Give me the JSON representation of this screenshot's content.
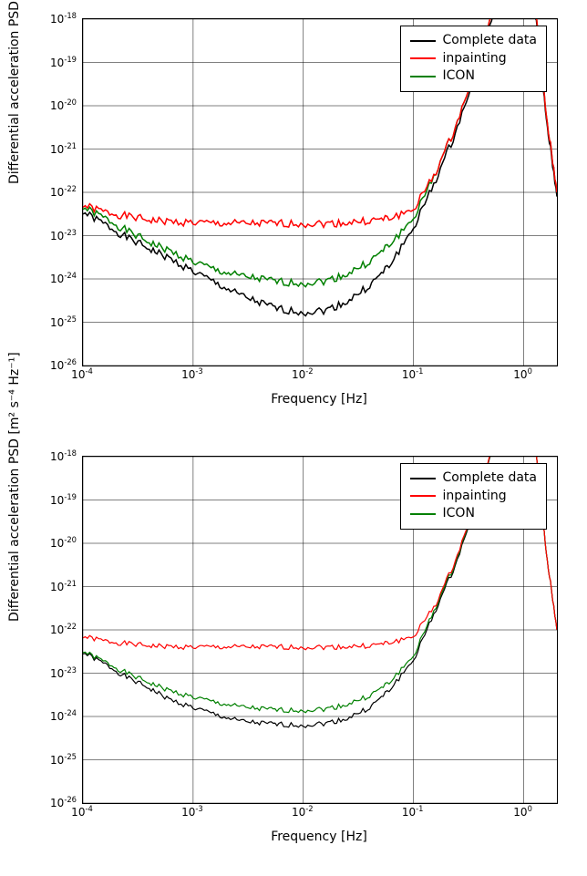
{
  "charts": [
    {
      "id": "top",
      "type": "line",
      "xlabel": "Frequency [Hz]",
      "ylabel": "Differential acceleration PSD [m² s⁻⁴ Hz⁻¹]",
      "label_fontsize": 14,
      "tick_fontsize": 12,
      "background_color": "#ffffff",
      "grid_color": "#000000",
      "border_color": "#000000",
      "xscale": "log",
      "yscale": "log",
      "xlim": [
        0.0001,
        2.0
      ],
      "ylim": [
        1e-26,
        1e-18
      ],
      "xticks": [
        0.0001,
        0.001,
        0.01,
        0.1,
        1.0
      ],
      "yticks": [
        1e-26,
        1e-25,
        1e-24,
        1e-23,
        1e-22,
        1e-21,
        1e-20,
        1e-19,
        1e-18
      ],
      "legend": {
        "position": "upper-right",
        "items": [
          {
            "label": "Complete data",
            "color": "#000000"
          },
          {
            "label": "inpainting",
            "color": "#ff0000"
          },
          {
            "label": "ICON",
            "color": "#008000"
          }
        ]
      },
      "series": [
        {
          "name": "Complete data",
          "color": "#000000",
          "line_width": 1.5,
          "noise_amp": 0.18,
          "x": [
            0.0001,
            0.00016,
            0.00025,
            0.0004,
            0.0006,
            0.001,
            0.0016,
            0.0025,
            0.004,
            0.006,
            0.01,
            0.016,
            0.025,
            0.04,
            0.06,
            0.1,
            0.16,
            0.25,
            0.4,
            0.6,
            1.0,
            1.3,
            1.6,
            2.0
          ],
          "y": [
            3.5e-23,
            1.8e-23,
            9e-24,
            5e-24,
            3e-24,
            1.5e-24,
            8e-25,
            4.5e-25,
            2.8e-25,
            2e-25,
            1.7e-25,
            1.9e-25,
            3e-25,
            7e-25,
            2e-24,
            1.5e-23,
            2e-22,
            3e-21,
            1.5e-19,
            3e-18,
            1e-16,
            8e-19,
            5e-21,
            8e-23
          ]
        },
        {
          "name": "ICON",
          "color": "#008000",
          "line_width": 1.5,
          "noise_amp": 0.18,
          "x": [
            0.0001,
            0.00016,
            0.00025,
            0.0004,
            0.0006,
            0.001,
            0.0016,
            0.0025,
            0.004,
            0.006,
            0.01,
            0.016,
            0.025,
            0.04,
            0.06,
            0.1,
            0.16,
            0.25,
            0.4,
            0.6,
            1.0,
            1.3,
            1.6,
            2.0
          ],
          "y": [
            4.5e-23,
            2.5e-23,
            1.3e-23,
            7e-24,
            4.5e-24,
            2.5e-24,
            1.6e-24,
            1.2e-24,
            1e-24,
            8.5e-25,
            8e-25,
            9e-25,
            1.3e-24,
            2.5e-24,
            6e-24,
            2.5e-23,
            3e-22,
            4e-21,
            2e-19,
            4e-18,
            1e-16,
            1e-18,
            6e-21,
            1e-22
          ]
        },
        {
          "name": "inpainting",
          "color": "#ff0000",
          "line_width": 1.5,
          "noise_amp": 0.18,
          "x": [
            0.0001,
            0.00016,
            0.00025,
            0.0004,
            0.0006,
            0.001,
            0.0016,
            0.0025,
            0.004,
            0.006,
            0.01,
            0.016,
            0.025,
            0.04,
            0.06,
            0.1,
            0.16,
            0.25,
            0.4,
            0.6,
            1.0,
            1.3,
            1.6,
            2.0
          ],
          "y": [
            5e-23,
            3.5e-23,
            2.8e-23,
            2.3e-23,
            2.1e-23,
            2e-23,
            1.9e-23,
            1.9e-23,
            1.9e-23,
            1.9e-23,
            1.9e-23,
            1.9e-23,
            2e-23,
            2.2e-23,
            2.5e-23,
            4e-23,
            3e-22,
            4e-21,
            2e-19,
            4e-18,
            1e-16,
            1e-18,
            6e-21,
            1e-22
          ]
        }
      ]
    },
    {
      "id": "bottom",
      "type": "line",
      "xlabel": "Frequency [Hz]",
      "ylabel": "Differential acceleration PSD [m² s⁻⁴ Hz⁻¹]",
      "label_fontsize": 14,
      "tick_fontsize": 12,
      "background_color": "#ffffff",
      "grid_color": "#000000",
      "border_color": "#000000",
      "xscale": "log",
      "yscale": "log",
      "xlim": [
        0.0001,
        2.0
      ],
      "ylim": [
        1e-26,
        1e-18
      ],
      "xticks": [
        0.0001,
        0.001,
        0.01,
        0.1,
        1.0
      ],
      "yticks": [
        1e-26,
        1e-25,
        1e-24,
        1e-23,
        1e-22,
        1e-21,
        1e-20,
        1e-19,
        1e-18
      ],
      "legend": {
        "position": "upper-right",
        "items": [
          {
            "label": "Complete data",
            "color": "#000000"
          },
          {
            "label": "inpainting",
            "color": "#ff0000"
          },
          {
            "label": "ICON",
            "color": "#008000"
          }
        ]
      },
      "series": [
        {
          "name": "Complete data",
          "color": "#000000",
          "line_width": 1.2,
          "noise_amp": 0.12,
          "x": [
            0.0001,
            0.00016,
            0.00025,
            0.0004,
            0.0006,
            0.001,
            0.0016,
            0.0025,
            0.004,
            0.006,
            0.01,
            0.016,
            0.025,
            0.04,
            0.06,
            0.1,
            0.16,
            0.25,
            0.4,
            0.6,
            1.0,
            1.3,
            1.6,
            2.0
          ],
          "y": [
            3e-23,
            1.6e-23,
            8e-24,
            4.5e-24,
            2.5e-24,
            1.6e-24,
            1.1e-24,
            8e-25,
            7e-25,
            6.5e-25,
            6.3e-25,
            7e-25,
            9e-25,
            1.6e-24,
            4e-24,
            2e-23,
            3e-22,
            4e-21,
            2e-19,
            4e-18,
            1e-16,
            1e-18,
            6e-21,
            1e-22
          ]
        },
        {
          "name": "ICON",
          "color": "#008000",
          "line_width": 1.2,
          "noise_amp": 0.12,
          "x": [
            0.0001,
            0.00016,
            0.00025,
            0.0004,
            0.0006,
            0.001,
            0.0016,
            0.0025,
            0.004,
            0.006,
            0.01,
            0.016,
            0.025,
            0.04,
            0.06,
            0.1,
            0.16,
            0.25,
            0.4,
            0.6,
            1.0,
            1.3,
            1.6,
            2.0
          ],
          "y": [
            3.2e-23,
            1.8e-23,
            1e-23,
            6e-24,
            4e-24,
            2.8e-24,
            2.1e-24,
            1.7e-24,
            1.5e-24,
            1.4e-24,
            1.4e-24,
            1.5e-24,
            1.9e-24,
            3e-24,
            6e-24,
            2.5e-23,
            3.5e-22,
            4.5e-21,
            2.2e-19,
            4.2e-18,
            1e-16,
            1e-18,
            6e-21,
            1e-22
          ]
        },
        {
          "name": "inpainting",
          "color": "#ff0000",
          "line_width": 1.2,
          "noise_amp": 0.12,
          "x": [
            0.0001,
            0.00016,
            0.00025,
            0.0004,
            0.0006,
            0.001,
            0.0016,
            0.0025,
            0.004,
            0.006,
            0.01,
            0.016,
            0.025,
            0.04,
            0.06,
            0.1,
            0.16,
            0.25,
            0.4,
            0.6,
            1.0,
            1.3,
            1.6,
            2.0
          ],
          "y": [
            7e-23,
            5.5e-23,
            4.8e-23,
            4.3e-23,
            4.1e-23,
            4e-23,
            4e-23,
            4e-23,
            4e-23,
            4e-23,
            4e-23,
            4e-23,
            4.1e-23,
            4.3e-23,
            5e-23,
            7e-23,
            4e-22,
            5e-21,
            2.3e-19,
            4.3e-18,
            1e-16,
            1e-18,
            6e-21,
            1e-22
          ]
        }
      ]
    }
  ]
}
